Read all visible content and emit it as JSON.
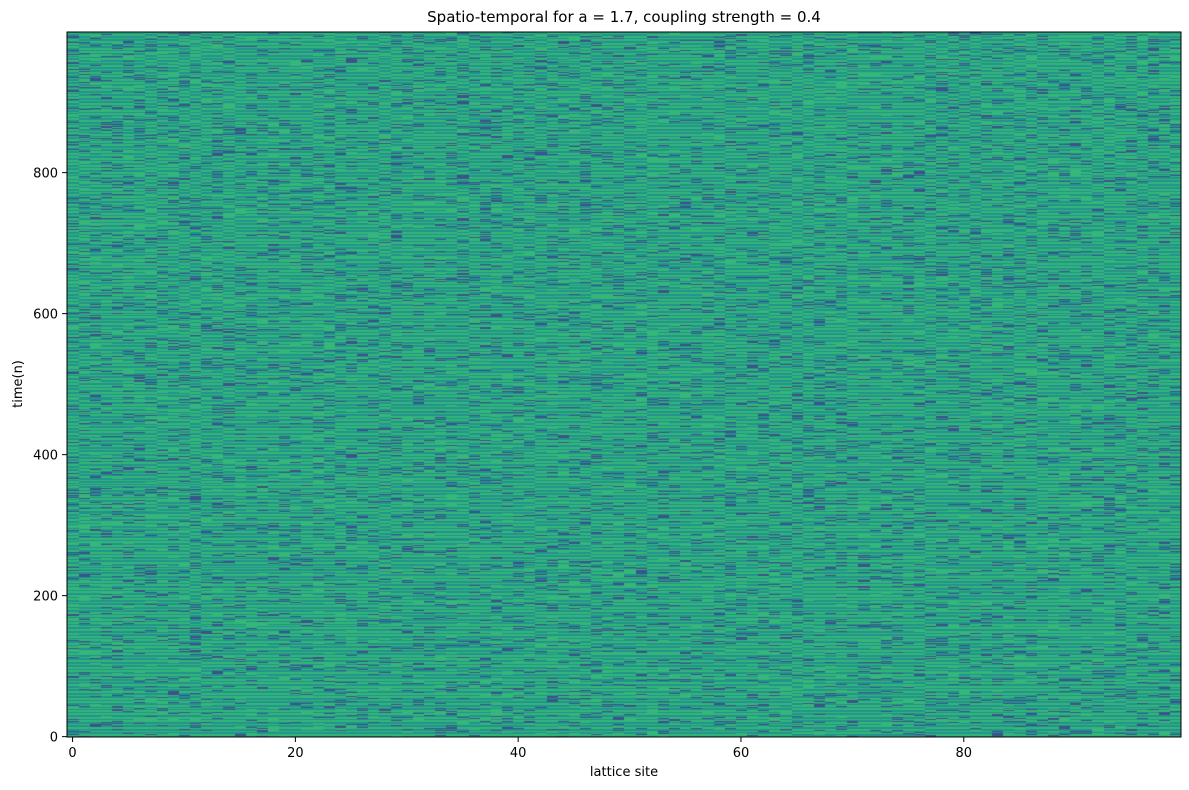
{
  "chart_data": {
    "type": "heatmap",
    "title": "Spatio-temporal for a = 1.7, coupling strength = 0.4",
    "xlabel": "lattice site",
    "ylabel": "time(n)",
    "xlim": [
      -0.5,
      99.5
    ],
    "ylim": [
      -0.5,
      999.5
    ],
    "xticks": [
      0,
      20,
      40,
      60,
      80
    ],
    "yticks": [
      0,
      200,
      400,
      600,
      800
    ],
    "lattice_sites": 100,
    "time_steps": 1000,
    "colormap": "viridis",
    "dominant_colors": [
      "#21918c",
      "#35b779",
      "#3b528b"
    ],
    "grid": false
  }
}
